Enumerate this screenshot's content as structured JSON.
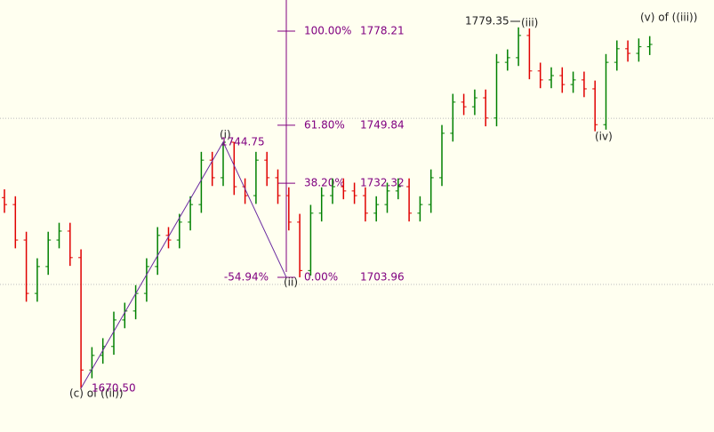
{
  "chart_data": {
    "type": "ohlc",
    "ylim": [
      1657.3,
      1787.6
    ],
    "up_color": "#008000",
    "down_color": "#e00000",
    "fib_color": "#800080",
    "wave_color": "#6a2aa0",
    "hlines": [
      1751.9,
      1701.8
    ],
    "open": [
      1728.0,
      1725.9,
      1715.2,
      1699.1,
      1707.2,
      1715.2,
      1717.9,
      1709.9,
      1676.0,
      1680.4,
      1683.1,
      1691.1,
      1693.8,
      1699.1,
      1707.2,
      1716.6,
      1715.2,
      1720.6,
      1725.9,
      1739.3,
      1734.0,
      1744.7,
      1731.3,
      1728.6,
      1739.3,
      1734.0,
      1728.6,
      1720.6,
      1706.0,
      1723.3,
      1728.6,
      1731.3,
      1730.0,
      1728.6,
      1723.3,
      1725.9,
      1730.0,
      1731.3,
      1723.3,
      1725.9,
      1734.0,
      1747.4,
      1756.8,
      1755.4,
      1758.1,
      1752.0,
      1768.8,
      1770.2,
      1776.9,
      1766.2,
      1763.5,
      1764.8,
      1762.1,
      1763.5,
      1760.8,
      1750.0,
      1768.8,
      1772.9,
      1771.5,
      1773.5
    ],
    "high": [
      1730.5,
      1728.4,
      1717.7,
      1709.7,
      1717.7,
      1720.4,
      1720.4,
      1712.4,
      1682.9,
      1685.6,
      1693.6,
      1696.3,
      1701.6,
      1709.7,
      1719.1,
      1719.1,
      1723.1,
      1728.4,
      1741.8,
      1741.8,
      1744.75,
      1744.7,
      1733.8,
      1741.8,
      1741.8,
      1736.5,
      1731.1,
      1723.1,
      1725.8,
      1731.1,
      1733.8,
      1733.8,
      1732.5,
      1731.1,
      1728.4,
      1732.5,
      1733.8,
      1733.8,
      1728.4,
      1736.5,
      1749.9,
      1759.3,
      1759.3,
      1760.6,
      1760.6,
      1771.3,
      1772.7,
      1779.35,
      1779.0,
      1768.7,
      1767.3,
      1767.3,
      1766.0,
      1766.0,
      1763.3,
      1771.3,
      1775.4,
      1775.4,
      1776.0,
      1776.7
    ],
    "low": [
      1723.4,
      1712.7,
      1696.6,
      1696.6,
      1704.7,
      1712.7,
      1707.4,
      1670.5,
      1673.5,
      1677.9,
      1680.6,
      1688.6,
      1691.3,
      1696.6,
      1704.7,
      1712.7,
      1712.7,
      1718.1,
      1723.4,
      1731.5,
      1731.5,
      1728.8,
      1726.1,
      1726.1,
      1731.5,
      1726.1,
      1718.1,
      1703.96,
      1704.5,
      1720.8,
      1726.1,
      1727.5,
      1726.1,
      1720.8,
      1720.8,
      1723.4,
      1727.5,
      1720.8,
      1720.8,
      1723.4,
      1731.5,
      1744.9,
      1752.9,
      1752.9,
      1749.5,
      1749.5,
      1766.3,
      1767.7,
      1763.7,
      1761.0,
      1761.0,
      1759.6,
      1759.6,
      1758.3,
      1748.0,
      1748.5,
      1766.3,
      1769.0,
      1769.0,
      1771.0
    ],
    "close": [
      1725.9,
      1715.2,
      1699.1,
      1707.2,
      1715.2,
      1717.9,
      1709.9,
      1676.0,
      1680.4,
      1683.1,
      1691.1,
      1693.8,
      1699.1,
      1707.2,
      1716.6,
      1715.2,
      1720.6,
      1725.9,
      1739.3,
      1734.0,
      1744.7,
      1731.3,
      1728.6,
      1739.3,
      1734.0,
      1728.6,
      1720.6,
      1706.0,
      1723.3,
      1728.6,
      1731.3,
      1730.0,
      1728.6,
      1723.3,
      1725.9,
      1730.0,
      1731.3,
      1723.3,
      1725.9,
      1734.0,
      1747.4,
      1756.8,
      1755.4,
      1758.1,
      1752.0,
      1768.8,
      1770.2,
      1776.9,
      1766.2,
      1763.5,
      1764.8,
      1762.1,
      1763.5,
      1760.8,
      1750.0,
      1768.8,
      1772.9,
      1771.5,
      1773.5,
      1774.2
    ],
    "fib_levels": [
      {
        "label": "100.00%",
        "value": 1778.21
      },
      {
        "label": "61.80%",
        "value": 1749.84
      },
      {
        "label": "38.20%",
        "value": 1732.32
      },
      {
        "label": "0.00%",
        "value": 1703.96
      }
    ],
    "retracement_label": "-54.94%",
    "annotations": {
      "c_low": {
        "label": "(c) of ((ii))",
        "price_label": "1670.50",
        "value": 1670.5
      },
      "wave_i": {
        "label": "(i)",
        "price_label": "1744.75",
        "value": 1744.75
      },
      "wave_ii": {
        "label": "(ii)",
        "value": 1703.96
      },
      "wave_iii": {
        "label": "(iii)",
        "price_label": "1779.35",
        "value": 1779.35
      },
      "wave_iv": {
        "label": "(iv)"
      },
      "wave_v": {
        "label": "(v)  of ((iii))"
      }
    }
  }
}
